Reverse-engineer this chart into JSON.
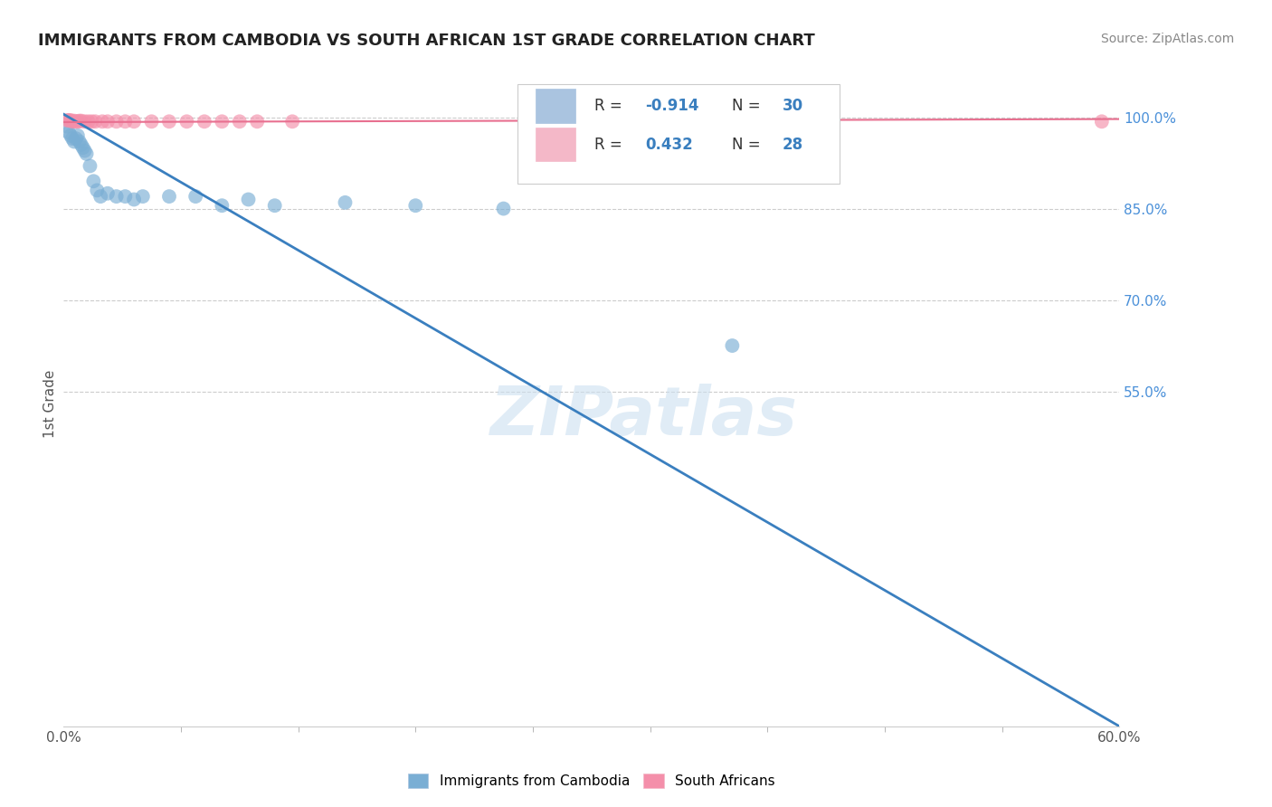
{
  "title": "IMMIGRANTS FROM CAMBODIA VS SOUTH AFRICAN 1ST GRADE CORRELATION CHART",
  "source": "Source: ZipAtlas.com",
  "ylabel": "1st Grade",
  "xlim": [
    0.0,
    0.6
  ],
  "ylim": [
    0.0,
    1.06
  ],
  "ytick_vals": [
    0.55,
    0.7,
    0.85,
    1.0
  ],
  "xtick_vals": [
    0.0,
    0.6
  ],
  "xtick_labels": [
    "0.0%",
    "60.0%"
  ],
  "grid_yticks": [
    0.55,
    0.7,
    0.85,
    1.0
  ],
  "legend_labels": [
    "Immigrants from Cambodia",
    "South Africans"
  ],
  "watermark": "ZIPatlas",
  "blue_color": "#7aaed4",
  "pink_color": "#f48faa",
  "blue_line_color": "#3a7fbf",
  "pink_line_color": "#e87090",
  "grid_color": "#cccccc",
  "background_color": "#ffffff",
  "tick_color": "#4a90d9",
  "blue_scatter_x": [
    0.002,
    0.003,
    0.004,
    0.005,
    0.006,
    0.007,
    0.008,
    0.009,
    0.01,
    0.011,
    0.012,
    0.013,
    0.015,
    0.017,
    0.019,
    0.021,
    0.025,
    0.03,
    0.035,
    0.04,
    0.045,
    0.06,
    0.075,
    0.09,
    0.105,
    0.12,
    0.16,
    0.2,
    0.25,
    0.38
  ],
  "blue_scatter_y": [
    0.985,
    0.975,
    0.97,
    0.965,
    0.96,
    0.965,
    0.97,
    0.96,
    0.955,
    0.95,
    0.945,
    0.94,
    0.92,
    0.895,
    0.88,
    0.87,
    0.875,
    0.87,
    0.87,
    0.865,
    0.87,
    0.87,
    0.87,
    0.855,
    0.865,
    0.855,
    0.86,
    0.855,
    0.85,
    0.625
  ],
  "pink_scatter_x": [
    0.002,
    0.003,
    0.004,
    0.005,
    0.006,
    0.007,
    0.008,
    0.009,
    0.01,
    0.012,
    0.014,
    0.016,
    0.018,
    0.022,
    0.025,
    0.03,
    0.035,
    0.04,
    0.05,
    0.06,
    0.07,
    0.08,
    0.09,
    0.1,
    0.11,
    0.13,
    0.59
  ],
  "pink_scatter_y": [
    0.995,
    0.995,
    0.995,
    0.993,
    0.994,
    0.993,
    0.993,
    0.994,
    0.994,
    0.993,
    0.993,
    0.993,
    0.993,
    0.993,
    0.993,
    0.993,
    0.993,
    0.993,
    0.993,
    0.993,
    0.993,
    0.993,
    0.993,
    0.993,
    0.993,
    0.993,
    0.993
  ],
  "blue_line_x0": 0.0,
  "blue_line_y0": 1.005,
  "blue_line_x1": 0.6,
  "blue_line_y1": 0.0,
  "pink_line_x0": 0.0,
  "pink_line_y0": 0.992,
  "pink_line_x1": 0.6,
  "pink_line_y1": 0.997
}
